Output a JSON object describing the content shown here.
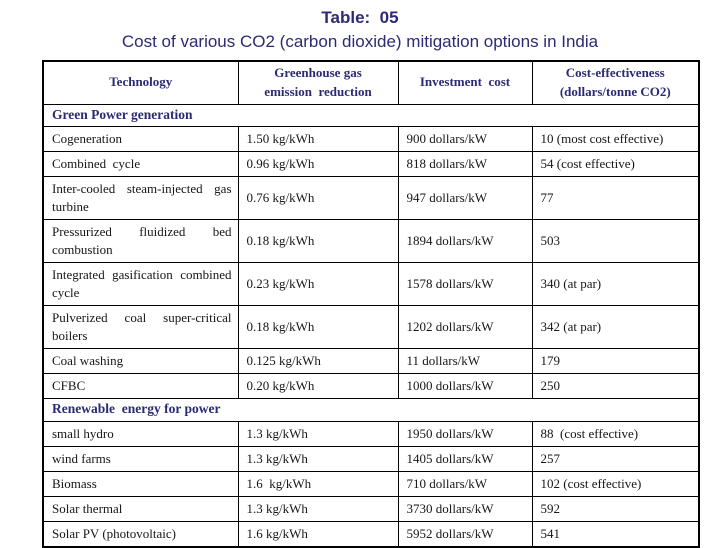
{
  "page": {
    "title": "Table:  05",
    "subtitle": "Cost of various CO2 (carbon dioxide) mitigation options in India"
  },
  "colors": {
    "heading_navy": "#2b2b75",
    "body_text": "#161616",
    "border": "#000000",
    "background": "#ffffff"
  },
  "table": {
    "columns": [
      "Technology",
      "Greenhouse gas\nemission  reduction",
      "Investment  cost",
      "Cost-effectiveness\n(dollars/tonne CO2)"
    ],
    "rows": [
      {
        "type": "section",
        "label": "Green Power generation"
      },
      {
        "type": "data",
        "cells": [
          "Cogeneration",
          "1.50 kg/kWh",
          "900 dollars/kW",
          "10 (most cost effective)"
        ]
      },
      {
        "type": "data",
        "cells": [
          "Combined  cycle",
          "0.96 kg/kWh",
          "818 dollars/kW",
          "54 (cost effective)"
        ]
      },
      {
        "type": "data",
        "cells": [
          "Inter-cooled steam-injected gas turbine",
          "0.76 kg/kWh",
          "947 dollars/kW",
          "77"
        ]
      },
      {
        "type": "data",
        "cells": [
          "Pressurized fluidized bed combustion",
          "0.18 kg/kWh",
          "1894 dollars/kW",
          "503"
        ]
      },
      {
        "type": "data",
        "cells": [
          "Integrated gasification combined cycle",
          "0.23 kg/kWh",
          "1578 dollars/kW",
          "340 (at par)"
        ]
      },
      {
        "type": "data",
        "cells": [
          "Pulverized coal super-critical boilers",
          "0.18 kg/kWh",
          "1202 dollars/kW",
          "342 (at par)"
        ]
      },
      {
        "type": "data",
        "cells": [
          "Coal washing",
          "0.125 kg/kWh",
          "11 dollars/kW",
          "179"
        ]
      },
      {
        "type": "data",
        "cells": [
          "CFBC",
          "0.20 kg/kWh",
          "1000 dollars/kW",
          "250"
        ]
      },
      {
        "type": "section",
        "label": "Renewable  energy for power"
      },
      {
        "type": "data",
        "cells": [
          "small hydro",
          "1.3 kg/kWh",
          "1950 dollars/kW",
          "88  (cost effective)"
        ]
      },
      {
        "type": "data",
        "cells": [
          "wind farms",
          "1.3 kg/kWh",
          "1405 dollars/kW",
          "257"
        ]
      },
      {
        "type": "data",
        "cells": [
          "Biomass",
          "1.6  kg/kWh",
          "710 dollars/kW",
          "102 (cost effective)"
        ]
      },
      {
        "type": "data",
        "cells": [
          "Solar thermal",
          "1.3 kg/kWh",
          "3730 dollars/kW",
          "592"
        ]
      },
      {
        "type": "data",
        "cells": [
          "Solar PV (photovoltaic)",
          "1.6 kg/kWh",
          "5952 dollars/kW",
          "541"
        ]
      }
    ]
  }
}
